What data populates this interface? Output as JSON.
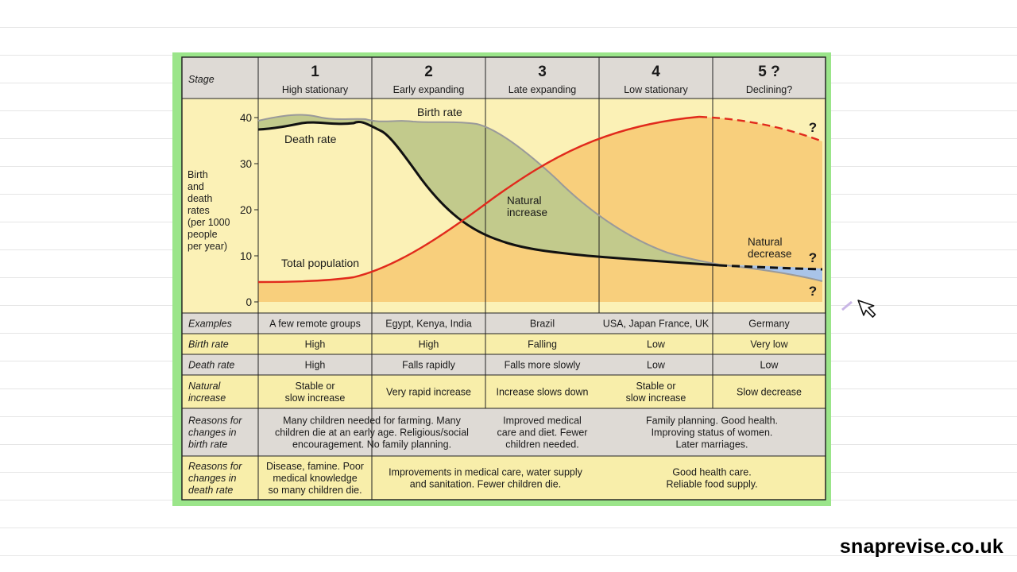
{
  "stages": [
    {
      "label": "Stage"
    },
    {
      "num": "1",
      "name": "High stationary"
    },
    {
      "num": "2",
      "name": "Early expanding"
    },
    {
      "num": "3",
      "name": "Late expanding"
    },
    {
      "num": "4",
      "name": "Low stationary"
    },
    {
      "num": "5 ?",
      "name": "Declining?"
    }
  ],
  "y_axis": {
    "label_lines": [
      "Birth",
      "and",
      "death",
      "rates",
      "(per 1000",
      "people",
      "per year)"
    ],
    "ticks": [
      "40",
      "30",
      "20",
      "10",
      "0"
    ]
  },
  "curve_labels": {
    "birth_rate": "Birth rate",
    "death_rate": "Death rate",
    "total_population": "Total population",
    "natural_increase": [
      "Natural",
      "increase"
    ],
    "natural_decrease": [
      "Natural",
      "decrease"
    ],
    "question": "?"
  },
  "rows": [
    {
      "header": [
        "Examples"
      ],
      "cells": [
        [
          "A few remote groups"
        ],
        [
          "Egypt, Kenya, India"
        ],
        [
          "Brazil"
        ],
        [
          "USA, Japan France, UK"
        ],
        [
          "Germany"
        ]
      ]
    },
    {
      "header": [
        "Birth rate"
      ],
      "cells": [
        [
          "High"
        ],
        [
          "High"
        ],
        [
          "Falling"
        ],
        [
          "Low"
        ],
        [
          "Very low"
        ]
      ]
    },
    {
      "header": [
        "Death rate"
      ],
      "cells": [
        [
          "High"
        ],
        [
          "Falls rapidly"
        ],
        [
          "Falls more slowly"
        ],
        [
          "Low"
        ],
        [
          "Low"
        ]
      ]
    },
    {
      "header": [
        "Natural",
        "increase"
      ],
      "cells": [
        [
          "Stable or",
          "slow increase"
        ],
        [
          "Very rapid increase"
        ],
        [
          "Increase slows down"
        ],
        [
          "Stable or",
          "slow increase"
        ],
        [
          "Slow decrease"
        ]
      ]
    },
    {
      "header": [
        "Reasons for",
        "changes in",
        "birth rate"
      ],
      "cells": [
        [
          "Many children needed for farming. Many",
          "children die at an early age. Religious/social",
          "encouragement. No family planning."
        ],
        [
          "Improved medical",
          "care and diet. Fewer",
          "children needed."
        ],
        [
          "Family planning. Good health.",
          "Improving status of women.",
          "Later marriages."
        ]
      ]
    },
    {
      "header": [
        "Reasons for",
        "changes in",
        "death rate"
      ],
      "cells": [
        [
          "Disease, famine. Poor",
          "medical knowledge",
          "so many children die."
        ],
        [
          "Improvements in medical care, water supply",
          "and sanitation. Fewer children die."
        ],
        [
          "Good health care.",
          "Reliable food supply."
        ]
      ]
    }
  ],
  "brand": "snaprevise.co.uk",
  "colors": {
    "frame": "#9be58a",
    "paper_light": "#fbf1b6",
    "paper_table": "#f8eeaa",
    "shaded_row": "#dedad5",
    "population_fill": "#f8cf7c",
    "increase_fill": "#c2ca8c",
    "decrease_fill": "#a9c4e9",
    "birth_line": "#9a9a9a",
    "death_line": "#111111",
    "population_line": "#e12a1c"
  }
}
